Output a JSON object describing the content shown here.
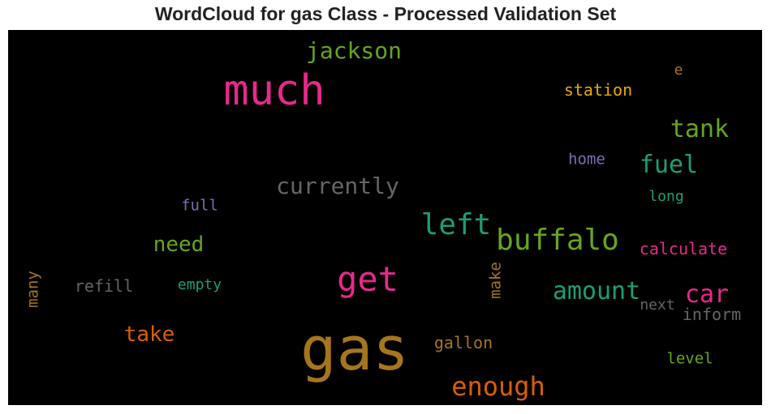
{
  "chart_data": {
    "type": "wordcloud",
    "title": "WordCloud for gas Class - Processed Validation Set",
    "background": "#000000",
    "words": [
      {
        "text": "gas",
        "color": "#a6761d",
        "orientation": "horizontal"
      },
      {
        "text": "much",
        "color": "#e7298a",
        "orientation": "horizontal"
      },
      {
        "text": "get",
        "color": "#e7298a",
        "orientation": "horizontal"
      },
      {
        "text": "buffalo",
        "color": "#66a61e",
        "orientation": "horizontal"
      },
      {
        "text": "left",
        "color": "#1b9e77",
        "orientation": "horizontal"
      },
      {
        "text": "enough",
        "color": "#d95f02",
        "orientation": "horizontal"
      },
      {
        "text": "amount",
        "color": "#1b9e77",
        "orientation": "horizontal"
      },
      {
        "text": "car",
        "color": "#e7298a",
        "orientation": "horizontal"
      },
      {
        "text": "jackson",
        "color": "#66a61e",
        "orientation": "horizontal"
      },
      {
        "text": "currently",
        "color": "#666666",
        "orientation": "horizontal"
      },
      {
        "text": "tank",
        "color": "#66a61e",
        "orientation": "horizontal"
      },
      {
        "text": "fuel",
        "color": "#1b9e77",
        "orientation": "horizontal"
      },
      {
        "text": "need",
        "color": "#66a61e",
        "orientation": "horizontal"
      },
      {
        "text": "take",
        "color": "#d95f02",
        "orientation": "horizontal"
      },
      {
        "text": "station",
        "color": "#e6ab02",
        "orientation": "horizontal"
      },
      {
        "text": "calculate",
        "color": "#e7298a",
        "orientation": "horizontal"
      },
      {
        "text": "gallon",
        "color": "#a6761d",
        "orientation": "horizontal"
      },
      {
        "text": "inform",
        "color": "#666666",
        "orientation": "horizontal"
      },
      {
        "text": "empty",
        "color": "#1b9e77",
        "orientation": "horizontal"
      },
      {
        "text": "refill",
        "color": "#666666",
        "orientation": "horizontal"
      },
      {
        "text": "home",
        "color": "#7570b3",
        "orientation": "horizontal"
      },
      {
        "text": "full",
        "color": "#7570b3",
        "orientation": "horizontal"
      },
      {
        "text": "long",
        "color": "#1b9e77",
        "orientation": "horizontal"
      },
      {
        "text": "level",
        "color": "#66a61e",
        "orientation": "horizontal"
      },
      {
        "text": "next",
        "color": "#666666",
        "orientation": "horizontal"
      },
      {
        "text": "make",
        "color": "#a6761d",
        "orientation": "vertical"
      },
      {
        "text": "many",
        "color": "#a6761d",
        "orientation": "vertical"
      },
      {
        "text": "e",
        "color": "#a6761d",
        "orientation": "horizontal"
      }
    ]
  }
}
